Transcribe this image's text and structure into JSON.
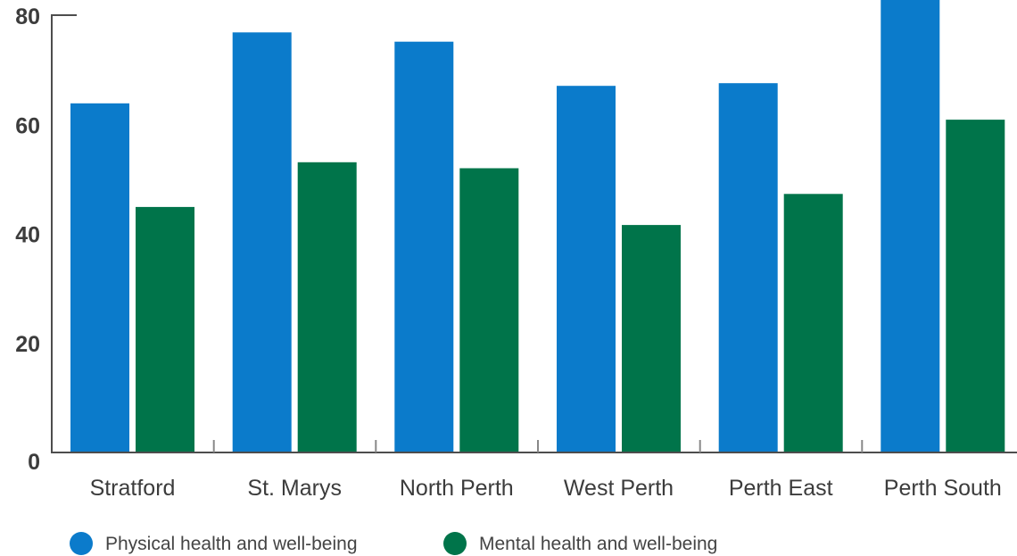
{
  "chart_data": {
    "type": "bar",
    "categories": [
      "Stratford",
      "St. Marys",
      "North Perth",
      "West Perth",
      "Perth East",
      "Perth South"
    ],
    "series": [
      {
        "name": "Physical health and well-being",
        "color": "#0b7bcb",
        "values": [
          64,
          77,
          75.3,
          67.2,
          67.7,
          83.5
        ]
      },
      {
        "name": "Mental health and well-being",
        "color": "#00744a",
        "values": [
          45,
          53.2,
          52.1,
          41.7,
          47.4,
          61
        ]
      }
    ],
    "yticks": [
      "0",
      "20",
      "40",
      "60",
      "80"
    ],
    "ylim": [
      0,
      80
    ],
    "legend_position": "bottom-left"
  }
}
